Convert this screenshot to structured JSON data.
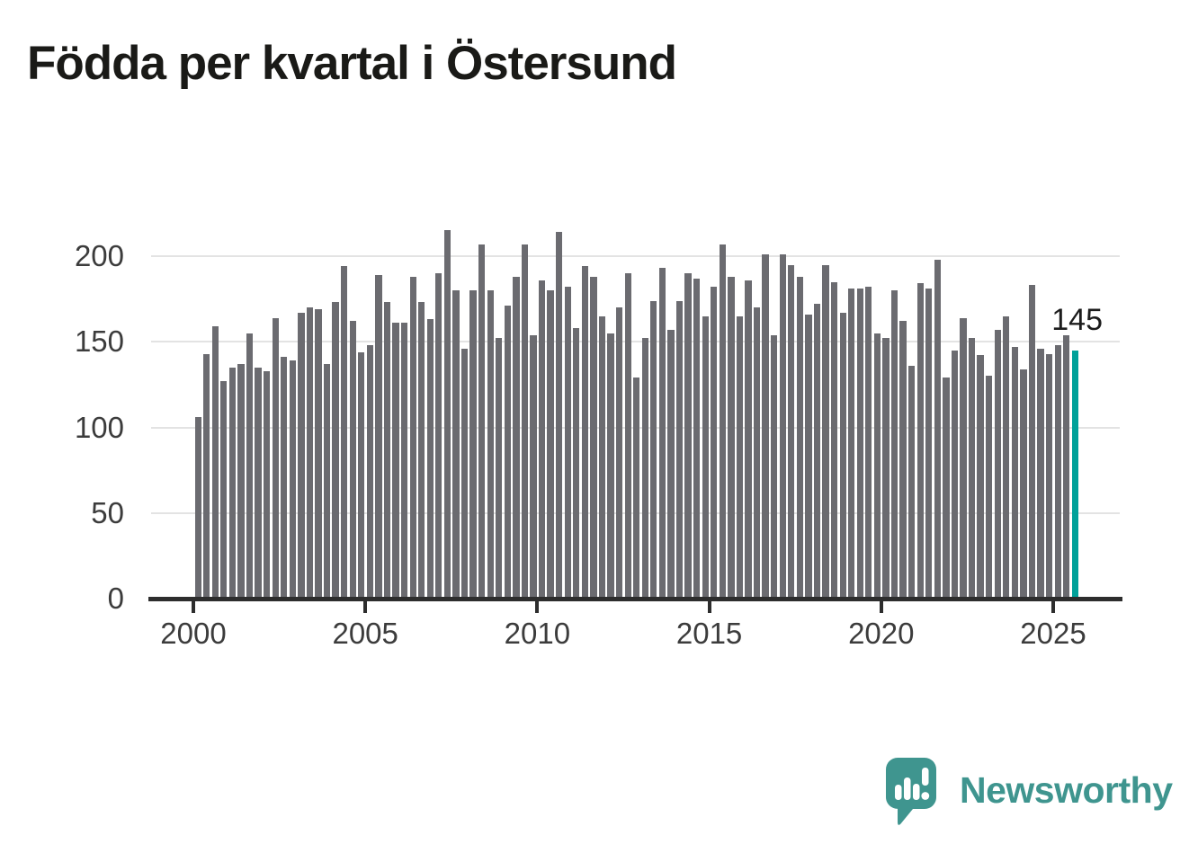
{
  "title": "Födda per kvartal i Östersund",
  "annotation": {
    "label": "145"
  },
  "logo": {
    "text": "Newsworthy",
    "icon": "newsworthy-speech-bubble-chart-icon"
  },
  "colors": {
    "bar": "#6b6b70",
    "highlight": "#00a19a",
    "grid": "#e3e3e3",
    "axis": "#2d2d2d",
    "tick_text": "#3c3c3c",
    "title_text": "#1a1a17",
    "logo": "#3f958f"
  },
  "chart_data": {
    "type": "bar",
    "title": "Födda per kvartal i Östersund",
    "frequency": "quarterly",
    "start": "2000-Q1",
    "end": "2025-Q3",
    "xlabel": "",
    "ylabel": "",
    "ylim": [
      0,
      220
    ],
    "grid": "horizontal",
    "legend": "none",
    "x_tick_labels": [
      "2000",
      "2005",
      "2010",
      "2015",
      "2020",
      "2025"
    ],
    "y_tick_labels": [
      "0",
      "50",
      "100",
      "150",
      "200"
    ],
    "y_ticks": [
      0,
      50,
      100,
      150,
      200
    ],
    "highlight_last_bar": true,
    "last_value_label": "145",
    "values": [
      106,
      143,
      159,
      127,
      135,
      137,
      155,
      135,
      133,
      164,
      141,
      139,
      167,
      170,
      169,
      137,
      173,
      194,
      162,
      144,
      148,
      189,
      173,
      161,
      161,
      188,
      173,
      163,
      190,
      215,
      180,
      146,
      180,
      207,
      180,
      152,
      171,
      188,
      207,
      154,
      186,
      180,
      214,
      182,
      158,
      194,
      188,
      165,
      155,
      170,
      190,
      129,
      152,
      174,
      193,
      157,
      174,
      190,
      187,
      165,
      182,
      207,
      188,
      165,
      186,
      170,
      201,
      154,
      201,
      195,
      188,
      166,
      172,
      195,
      185,
      167,
      181,
      181,
      182,
      155,
      152,
      180,
      162,
      136,
      184,
      181,
      198,
      129,
      145,
      164,
      152,
      142,
      130,
      157,
      165,
      147,
      134,
      183,
      146,
      143,
      148,
      154,
      145
    ]
  }
}
